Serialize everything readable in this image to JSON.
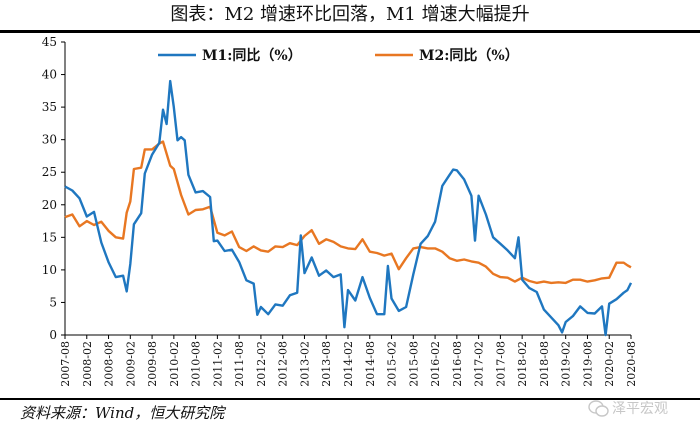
{
  "header": {
    "title": "图表：M2 增速环比回落，M1 增速大幅提升"
  },
  "footer": {
    "source": "资料来源：Wind，恒大研究院",
    "watermark": "泽平宏观"
  },
  "colors": {
    "m1": "#1f77c0",
    "m2": "#e87722"
  },
  "chart_data": {
    "type": "line",
    "title": "图表：M2 增速环比回落，M1 增速大幅提升",
    "xlabel": "",
    "ylabel": "",
    "ylim": [
      0,
      45
    ],
    "yticks": [
      0,
      5,
      10,
      15,
      20,
      25,
      30,
      35,
      40,
      45
    ],
    "grid": false,
    "legend_position": "top",
    "x_tick_labels": [
      "2007-08",
      "2008-02",
      "2008-08",
      "2009-02",
      "2009-08",
      "2010-02",
      "2010-08",
      "2011-02",
      "2011-08",
      "2012-02",
      "2012-08",
      "2013-02",
      "2013-08",
      "2014-02",
      "2014-08",
      "2015-02",
      "2015-08",
      "2016-02",
      "2016-08",
      "2017-02",
      "2017-08",
      "2018-02",
      "2018-08",
      "2019-02",
      "2019-08",
      "2020-02",
      "2020-08"
    ],
    "series": [
      {
        "name": "M1:同比（%）",
        "color": "#1f77c0",
        "points": [
          [
            "2007-08",
            22.8
          ],
          [
            "2007-10",
            22.2
          ],
          [
            "2007-12",
            21.0
          ],
          [
            "2008-02",
            18.2
          ],
          [
            "2008-04",
            18.9
          ],
          [
            "2008-06",
            14.2
          ],
          [
            "2008-08",
            11.2
          ],
          [
            "2008-10",
            8.9
          ],
          [
            "2008-12",
            9.1
          ],
          [
            "2009-01",
            6.7
          ],
          [
            "2009-02",
            10.9
          ],
          [
            "2009-03",
            17.0
          ],
          [
            "2009-05",
            18.7
          ],
          [
            "2009-06",
            24.8
          ],
          [
            "2009-08",
            27.7
          ],
          [
            "2009-10",
            29.5
          ],
          [
            "2009-11",
            34.6
          ],
          [
            "2009-12",
            32.4
          ],
          [
            "2010-01",
            39.0
          ],
          [
            "2010-02",
            35.0
          ],
          [
            "2010-03",
            29.9
          ],
          [
            "2010-04",
            30.4
          ],
          [
            "2010-05",
            29.9
          ],
          [
            "2010-06",
            24.6
          ],
          [
            "2010-08",
            21.9
          ],
          [
            "2010-10",
            22.1
          ],
          [
            "2010-12",
            21.2
          ],
          [
            "2011-01",
            14.4
          ],
          [
            "2011-02",
            14.5
          ],
          [
            "2011-04",
            12.9
          ],
          [
            "2011-06",
            13.1
          ],
          [
            "2011-08",
            11.2
          ],
          [
            "2011-10",
            8.4
          ],
          [
            "2011-12",
            7.9
          ],
          [
            "2012-01",
            3.1
          ],
          [
            "2012-02",
            4.3
          ],
          [
            "2012-04",
            3.2
          ],
          [
            "2012-06",
            4.7
          ],
          [
            "2012-08",
            4.5
          ],
          [
            "2012-10",
            6.1
          ],
          [
            "2012-12",
            6.5
          ],
          [
            "2013-01",
            15.3
          ],
          [
            "2013-02",
            9.5
          ],
          [
            "2013-04",
            11.9
          ],
          [
            "2013-06",
            9.1
          ],
          [
            "2013-08",
            9.9
          ],
          [
            "2013-10",
            8.9
          ],
          [
            "2013-12",
            9.3
          ],
          [
            "2014-01",
            1.2
          ],
          [
            "2014-02",
            6.9
          ],
          [
            "2014-04",
            5.3
          ],
          [
            "2014-06",
            8.9
          ],
          [
            "2014-08",
            5.7
          ],
          [
            "2014-10",
            3.2
          ],
          [
            "2014-12",
            3.2
          ],
          [
            "2015-01",
            10.6
          ],
          [
            "2015-02",
            5.6
          ],
          [
            "2015-04",
            3.7
          ],
          [
            "2015-06",
            4.3
          ],
          [
            "2015-08",
            9.3
          ],
          [
            "2015-10",
            14.0
          ],
          [
            "2015-12",
            15.2
          ],
          [
            "2016-02",
            17.4
          ],
          [
            "2016-04",
            22.9
          ],
          [
            "2016-06",
            24.6
          ],
          [
            "2016-07",
            25.4
          ],
          [
            "2016-08",
            25.3
          ],
          [
            "2016-10",
            23.9
          ],
          [
            "2016-12",
            21.4
          ],
          [
            "2017-01",
            14.5
          ],
          [
            "2017-02",
            21.4
          ],
          [
            "2017-04",
            18.5
          ],
          [
            "2017-06",
            15.0
          ],
          [
            "2017-08",
            14.0
          ],
          [
            "2017-10",
            13.0
          ],
          [
            "2017-12",
            11.8
          ],
          [
            "2018-01",
            15.0
          ],
          [
            "2018-02",
            8.5
          ],
          [
            "2018-04",
            7.2
          ],
          [
            "2018-06",
            6.6
          ],
          [
            "2018-08",
            3.9
          ],
          [
            "2018-10",
            2.7
          ],
          [
            "2018-12",
            1.5
          ],
          [
            "2019-01",
            0.4
          ],
          [
            "2019-02",
            2.0
          ],
          [
            "2019-04",
            2.9
          ],
          [
            "2019-06",
            4.4
          ],
          [
            "2019-08",
            3.4
          ],
          [
            "2019-10",
            3.3
          ],
          [
            "2019-12",
            4.4
          ],
          [
            "2020-01",
            0.0
          ],
          [
            "2020-02",
            4.8
          ],
          [
            "2020-04",
            5.5
          ],
          [
            "2020-06",
            6.5
          ],
          [
            "2020-07",
            6.9
          ],
          [
            "2020-08",
            8.0
          ]
        ]
      },
      {
        "name": "M2:同比（%）",
        "color": "#e87722",
        "points": [
          [
            "2007-08",
            18.1
          ],
          [
            "2007-10",
            18.5
          ],
          [
            "2007-12",
            16.7
          ],
          [
            "2008-02",
            17.5
          ],
          [
            "2008-04",
            16.9
          ],
          [
            "2008-06",
            17.4
          ],
          [
            "2008-08",
            16.0
          ],
          [
            "2008-10",
            15.0
          ],
          [
            "2008-12",
            14.8
          ],
          [
            "2009-01",
            18.8
          ],
          [
            "2009-02",
            20.5
          ],
          [
            "2009-03",
            25.5
          ],
          [
            "2009-05",
            25.7
          ],
          [
            "2009-06",
            28.5
          ],
          [
            "2009-08",
            28.5
          ],
          [
            "2009-10",
            29.4
          ],
          [
            "2009-11",
            29.7
          ],
          [
            "2010-01",
            26.0
          ],
          [
            "2010-02",
            25.5
          ],
          [
            "2010-04",
            21.5
          ],
          [
            "2010-06",
            18.5
          ],
          [
            "2010-08",
            19.2
          ],
          [
            "2010-10",
            19.3
          ],
          [
            "2010-12",
            19.7
          ],
          [
            "2011-02",
            15.7
          ],
          [
            "2011-04",
            15.3
          ],
          [
            "2011-06",
            15.9
          ],
          [
            "2011-08",
            13.5
          ],
          [
            "2011-10",
            12.9
          ],
          [
            "2011-12",
            13.6
          ],
          [
            "2012-02",
            13.0
          ],
          [
            "2012-04",
            12.8
          ],
          [
            "2012-06",
            13.6
          ],
          [
            "2012-08",
            13.5
          ],
          [
            "2012-10",
            14.1
          ],
          [
            "2012-12",
            13.8
          ],
          [
            "2013-02",
            15.2
          ],
          [
            "2013-04",
            16.1
          ],
          [
            "2013-06",
            14.0
          ],
          [
            "2013-08",
            14.7
          ],
          [
            "2013-10",
            14.3
          ],
          [
            "2013-12",
            13.6
          ],
          [
            "2014-02",
            13.3
          ],
          [
            "2014-04",
            13.2
          ],
          [
            "2014-06",
            14.7
          ],
          [
            "2014-08",
            12.8
          ],
          [
            "2014-10",
            12.6
          ],
          [
            "2014-12",
            12.2
          ],
          [
            "2015-02",
            12.5
          ],
          [
            "2015-04",
            10.1
          ],
          [
            "2015-06",
            11.8
          ],
          [
            "2015-08",
            13.3
          ],
          [
            "2015-10",
            13.5
          ],
          [
            "2015-12",
            13.3
          ],
          [
            "2016-02",
            13.3
          ],
          [
            "2016-04",
            12.8
          ],
          [
            "2016-06",
            11.8
          ],
          [
            "2016-08",
            11.4
          ],
          [
            "2016-10",
            11.6
          ],
          [
            "2016-12",
            11.3
          ],
          [
            "2017-02",
            11.1
          ],
          [
            "2017-04",
            10.5
          ],
          [
            "2017-06",
            9.4
          ],
          [
            "2017-08",
            8.9
          ],
          [
            "2017-10",
            8.8
          ],
          [
            "2017-12",
            8.2
          ],
          [
            "2018-02",
            8.8
          ],
          [
            "2018-04",
            8.3
          ],
          [
            "2018-06",
            8.0
          ],
          [
            "2018-08",
            8.2
          ],
          [
            "2018-10",
            8.0
          ],
          [
            "2018-12",
            8.1
          ],
          [
            "2019-02",
            8.0
          ],
          [
            "2019-04",
            8.5
          ],
          [
            "2019-06",
            8.5
          ],
          [
            "2019-08",
            8.2
          ],
          [
            "2019-10",
            8.4
          ],
          [
            "2019-12",
            8.7
          ],
          [
            "2020-02",
            8.8
          ],
          [
            "2020-04",
            11.1
          ],
          [
            "2020-05",
            11.1
          ],
          [
            "2020-06",
            11.1
          ],
          [
            "2020-07",
            10.7
          ],
          [
            "2020-08",
            10.4
          ]
        ]
      }
    ]
  }
}
